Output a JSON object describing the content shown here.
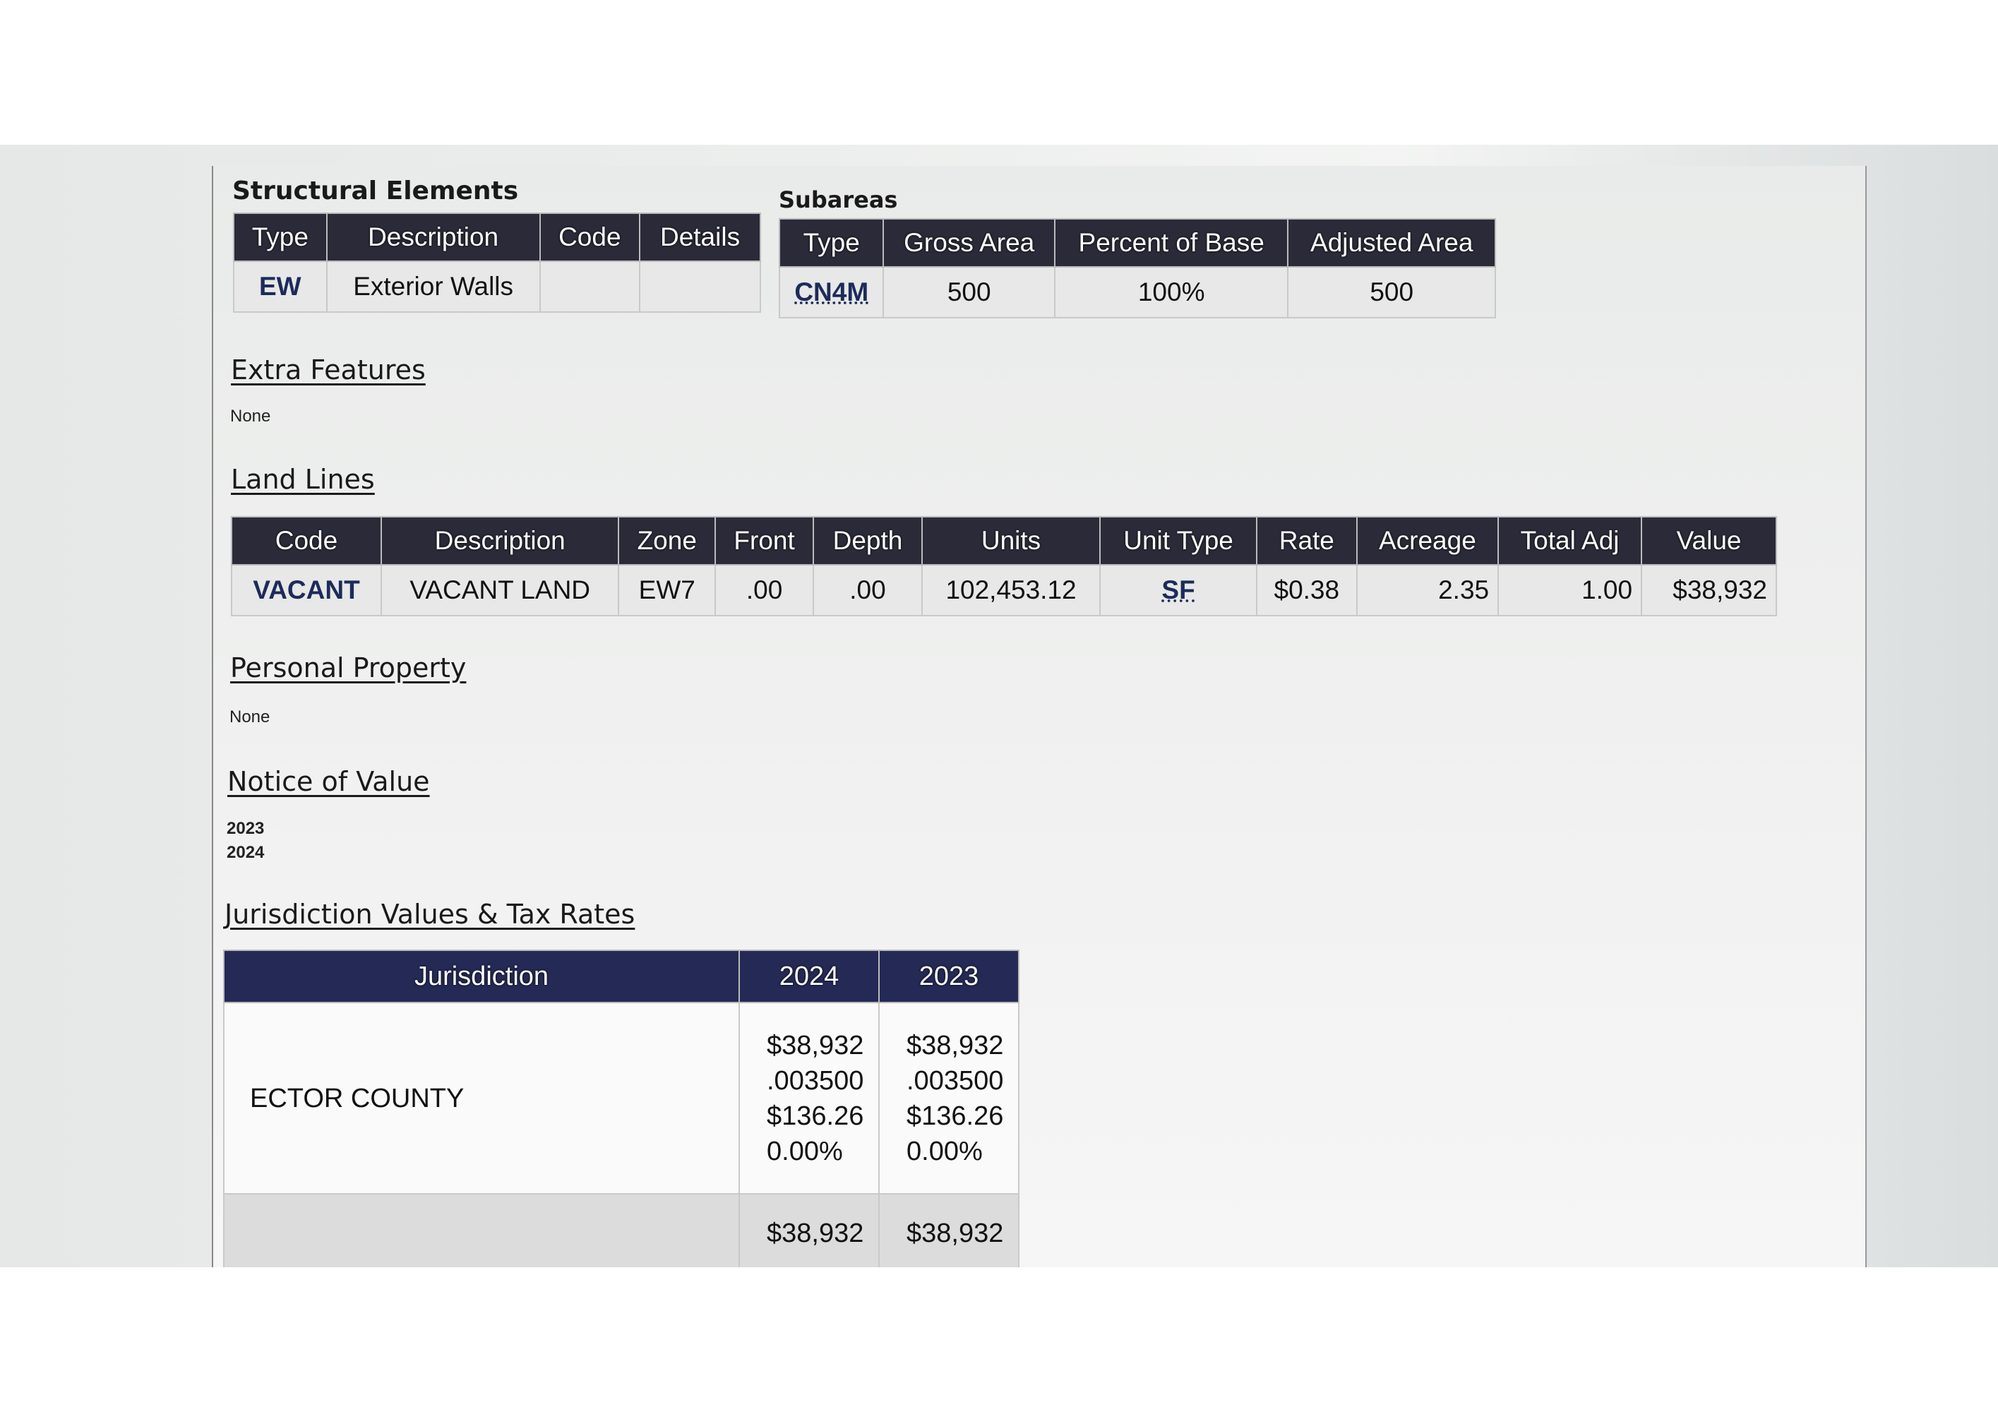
{
  "structural_elements": {
    "title": "Structural Elements",
    "headers": [
      "Type",
      "Description",
      "Code",
      "Details"
    ],
    "rows": [
      [
        "EW",
        "Exterior Walls",
        "",
        ""
      ]
    ]
  },
  "subareas": {
    "title": "Subareas",
    "headers": [
      "Type",
      "Gross Area",
      "Percent of Base",
      "Adjusted Area"
    ],
    "rows": [
      [
        "CN4M",
        "500",
        "100%",
        "500"
      ]
    ]
  },
  "extra_features": {
    "title": "Extra Features",
    "value": "None"
  },
  "land_lines": {
    "title": "Land Lines",
    "headers": [
      "Code",
      "Description",
      "Zone",
      "Front",
      "Depth",
      "Units",
      "Unit Type",
      "Rate",
      "Acreage",
      "Total Adj",
      "Value"
    ],
    "rows": [
      [
        "VACANT",
        "VACANT LAND",
        "EW7",
        ".00",
        ".00",
        "102,453.12",
        "SF",
        "$0.38",
        "2.35",
        "1.00",
        "$38,932"
      ]
    ]
  },
  "personal_property": {
    "title": "Personal Property",
    "value": "None"
  },
  "notice_of_value": {
    "title": "Notice of Value",
    "years": [
      "2023",
      "2024"
    ]
  },
  "jurisdiction": {
    "title": "Jurisdiction Values & Tax Rates",
    "headers": [
      "Jurisdiction",
      "2024",
      "2023"
    ],
    "rows": [
      {
        "name": "ECTOR COUNTY",
        "y2024": [
          "$38,932",
          ".003500",
          "$136.26",
          "0.00%"
        ],
        "y2023": [
          "$38,932",
          ".003500",
          "$136.26",
          "0.00%"
        ]
      },
      {
        "name": "",
        "y2024": [
          "$38,932"
        ],
        "y2023": [
          "$38,932"
        ]
      }
    ]
  }
}
